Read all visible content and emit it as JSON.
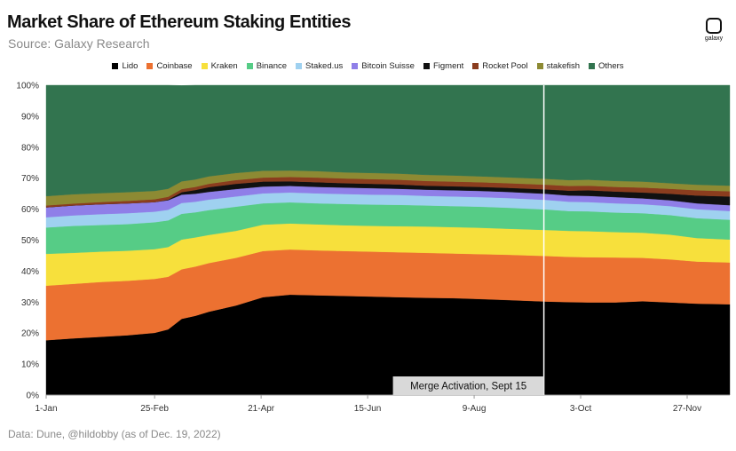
{
  "title": "Market Share of Ethereum Staking Entities",
  "subtitle": "Source: Galaxy Research",
  "logo_text": "galaxy",
  "footer": "Data: Dune, @hildobby (as of Dec. 19, 2022)",
  "chart_data": {
    "type": "area",
    "stacked": true,
    "xlabel": "",
    "ylabel": "",
    "ylim": [
      0,
      100
    ],
    "y_ticks": [
      "0%",
      "10%",
      "20%",
      "30%",
      "40%",
      "50%",
      "60%",
      "70%",
      "80%",
      "90%",
      "100%"
    ],
    "x_ticks": [
      {
        "day": 0,
        "label": "1-Jan"
      },
      {
        "day": 56,
        "label": "25-Feb"
      },
      {
        "day": 111,
        "label": "21-Apr"
      },
      {
        "day": 166,
        "label": "15-Jun"
      },
      {
        "day": 221,
        "label": "9-Aug"
      },
      {
        "day": 276,
        "label": "3-Oct"
      },
      {
        "day": 331,
        "label": "27-Nov"
      }
    ],
    "x_range": [
      0,
      353
    ],
    "x": [
      0,
      14,
      28,
      42,
      56,
      63,
      70,
      77,
      84,
      98,
      112,
      126,
      140,
      154,
      168,
      182,
      196,
      210,
      224,
      238,
      258,
      270,
      280,
      294,
      308,
      322,
      336,
      353
    ],
    "series": [
      {
        "name": "Lido",
        "color": "#000000",
        "values": [
          17.7,
          18.3,
          18.8,
          19.3,
          20.1,
          21.2,
          24.6,
          25.6,
          26.9,
          28.9,
          31.6,
          32.4,
          32.2,
          32.0,
          31.8,
          31.6,
          31.4,
          31.3,
          31.0,
          30.7,
          30.2,
          30.0,
          29.9,
          29.9,
          30.3,
          29.9,
          29.5,
          29.3
        ]
      },
      {
        "name": "Coinbase",
        "color": "#ec7131",
        "values": [
          17.6,
          17.6,
          17.7,
          17.6,
          17.4,
          17.0,
          16.0,
          15.9,
          15.7,
          15.4,
          14.9,
          14.6,
          14.5,
          14.5,
          14.5,
          14.5,
          14.5,
          14.4,
          14.5,
          14.6,
          14.7,
          14.6,
          14.6,
          14.5,
          14.0,
          13.9,
          13.6,
          13.5
        ]
      },
      {
        "name": "Kraken",
        "color": "#f7e03c",
        "values": [
          10.3,
          10.0,
          9.8,
          9.7,
          9.6,
          9.6,
          9.6,
          9.4,
          9.1,
          8.7,
          8.5,
          8.4,
          8.4,
          8.3,
          8.3,
          8.4,
          8.5,
          8.5,
          8.5,
          8.4,
          8.4,
          8.4,
          8.4,
          8.2,
          8.1,
          8.0,
          7.6,
          7.4
        ]
      },
      {
        "name": "Binance",
        "color": "#56cc86",
        "values": [
          8.5,
          8.7,
          8.6,
          8.6,
          8.7,
          8.6,
          8.3,
          8.1,
          8.0,
          7.8,
          6.9,
          6.8,
          6.8,
          6.9,
          6.9,
          6.9,
          6.8,
          6.8,
          6.8,
          6.8,
          6.6,
          6.4,
          6.4,
          6.3,
          6.3,
          6.3,
          6.4,
          6.4
        ]
      },
      {
        "name": "Staked.us",
        "color": "#9fd1f0",
        "values": [
          3.3,
          3.4,
          3.5,
          3.5,
          3.4,
          3.4,
          3.5,
          3.4,
          3.4,
          3.3,
          3.2,
          3.2,
          3.2,
          3.2,
          3.2,
          3.2,
          3.1,
          3.1,
          3.1,
          3.1,
          3.1,
          3.0,
          3.0,
          3.0,
          2.9,
          2.9,
          2.9,
          2.8
        ]
      },
      {
        "name": "Bitcoin Suisse",
        "color": "#8f7fe8",
        "values": [
          3.2,
          3.2,
          3.2,
          3.2,
          3.1,
          3.1,
          2.7,
          2.6,
          2.5,
          2.4,
          2.2,
          2.1,
          2.1,
          2.1,
          2.1,
          2.0,
          2.0,
          2.0,
          2.0,
          2.0,
          2.0,
          2.0,
          2.0,
          2.0,
          1.9,
          1.9,
          1.9,
          1.9
        ]
      },
      {
        "name": "Figment",
        "color": "#111111",
        "values": [
          0.0,
          0.0,
          0.0,
          0.0,
          0.0,
          0.2,
          0.8,
          1.2,
          1.5,
          1.7,
          1.6,
          1.5,
          1.5,
          1.4,
          1.4,
          1.4,
          1.3,
          1.3,
          1.3,
          1.3,
          1.4,
          1.6,
          1.8,
          1.8,
          1.9,
          2.1,
          2.5,
          2.8
        ]
      },
      {
        "name": "Rocket Pool",
        "color": "#8b3d1e",
        "values": [
          0.6,
          0.6,
          0.7,
          0.8,
          0.9,
          0.9,
          1.0,
          1.0,
          1.1,
          1.2,
          1.3,
          1.4,
          1.5,
          1.5,
          1.5,
          1.5,
          1.5,
          1.5,
          1.5,
          1.5,
          1.5,
          1.5,
          1.5,
          1.5,
          1.6,
          1.6,
          1.7,
          1.7
        ]
      },
      {
        "name": "stakefish",
        "color": "#8d8a33",
        "values": [
          3.0,
          3.0,
          2.9,
          2.8,
          2.7,
          2.6,
          2.5,
          2.4,
          2.4,
          2.3,
          2.2,
          2.1,
          2.1,
          2.0,
          2.0,
          2.0,
          2.0,
          2.0,
          1.9,
          1.9,
          1.9,
          1.9,
          1.9,
          1.9,
          1.9,
          1.8,
          1.8,
          1.8
        ]
      },
      {
        "name": "Others",
        "color": "#32744f",
        "values": [
          35.8,
          35.2,
          34.8,
          34.5,
          34.1,
          33.4,
          30.9,
          30.4,
          29.4,
          28.3,
          27.6,
          27.5,
          27.7,
          28.1,
          28.3,
          28.5,
          28.9,
          29.1,
          29.4,
          29.7,
          30.2,
          30.6,
          30.5,
          30.9,
          31.1,
          31.6,
          32.1,
          32.4
        ]
      }
    ],
    "annotation": {
      "day": 257,
      "label": "Merge Activation, Sept 15"
    }
  }
}
